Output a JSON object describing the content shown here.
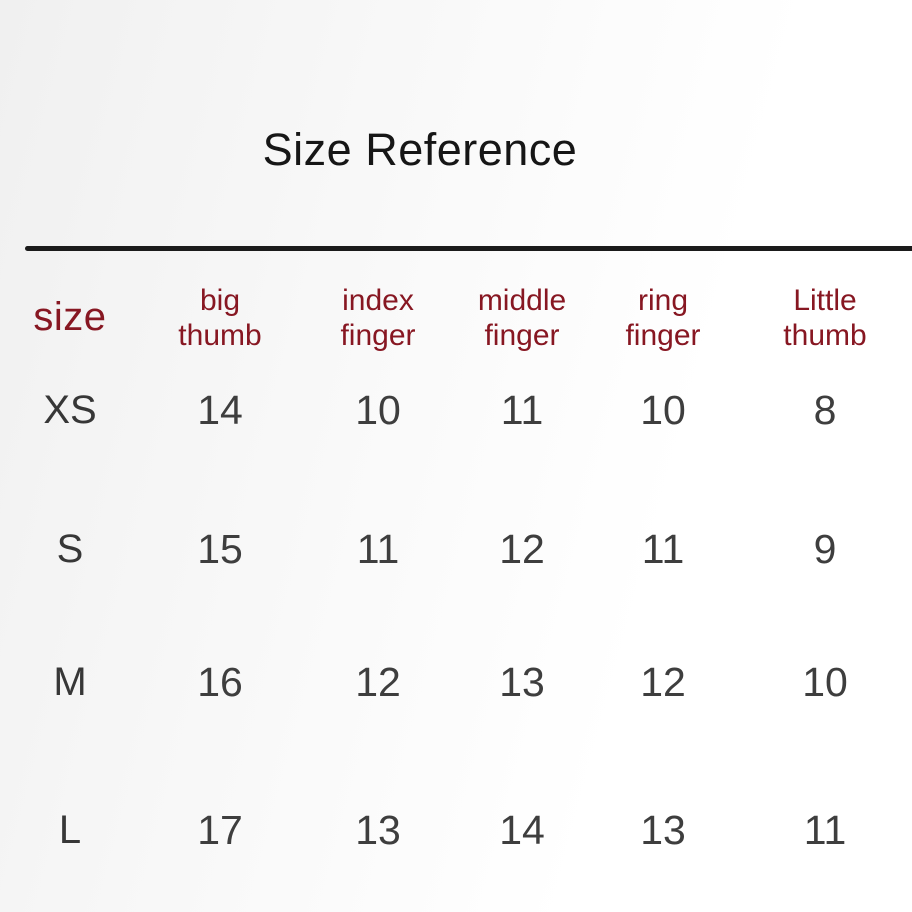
{
  "page": {
    "title": "Size Reference"
  },
  "colors": {
    "header_text": "#871722",
    "body_text": "#3e3e3e",
    "title_text": "#161616",
    "divider": "#1b1b1b",
    "background": "#f5f5f5"
  },
  "table": {
    "headers": [
      {
        "line1": "size"
      },
      {
        "line1": "big",
        "line2": "thumb"
      },
      {
        "line1": "index",
        "line2": "finger"
      },
      {
        "line1": "middle",
        "line2": "finger"
      },
      {
        "line1": "ring",
        "line2": "finger"
      },
      {
        "line1": "Little",
        "line2": "thumb"
      }
    ],
    "rows": [
      {
        "label": "XS",
        "cells": [
          "14",
          "10",
          "11",
          "10",
          "8"
        ]
      },
      {
        "label": "S",
        "cells": [
          "15",
          "11",
          "12",
          "11",
          "9"
        ]
      },
      {
        "label": "M",
        "cells": [
          "16",
          "12",
          "13",
          "12",
          "10"
        ]
      },
      {
        "label": "L",
        "cells": [
          "17",
          "13",
          "14",
          "13",
          "11"
        ]
      }
    ]
  },
  "chart_data": {
    "type": "table",
    "title": "Size Reference",
    "columns": [
      "size",
      "big thumb",
      "index finger",
      "middle finger",
      "ring finger",
      "Little thumb"
    ],
    "rows": [
      [
        "XS",
        14,
        10,
        11,
        10,
        8
      ],
      [
        "S",
        15,
        11,
        12,
        11,
        9
      ],
      [
        "M",
        16,
        12,
        13,
        12,
        10
      ],
      [
        "L",
        17,
        13,
        14,
        13,
        11
      ]
    ]
  }
}
